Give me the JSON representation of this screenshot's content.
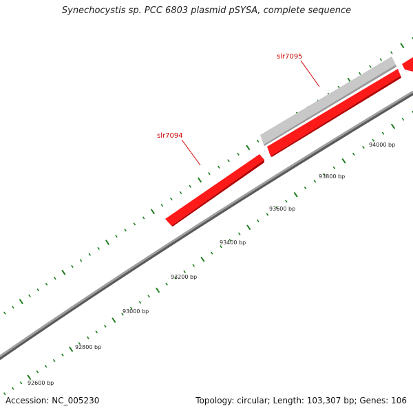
{
  "title": "Synechocystis sp. PCC 6803 plasmid pSYSA, complete sequence",
  "footer": {
    "accession": "Accession: NC_005230",
    "summary": "Topology: circular; Length: 103,307 bp; Genes: 106"
  },
  "colors": {
    "backbone": "#8a8a8a",
    "gene_forward": "#ff1a1a",
    "gene_other": "#c8c8c8",
    "ticks": "#1e7d1e",
    "gene_label": "#cc0000"
  },
  "scale_labels": [
    "92600 bp",
    "92800 bp",
    "93000 bp",
    "93200 bp",
    "93400 bp",
    "93600 bp",
    "93800 bp",
    "94000 bp"
  ],
  "genes": [
    {
      "name": "slr7094",
      "strand": "forward"
    },
    {
      "name": "slr7095",
      "strand": "forward"
    }
  ]
}
